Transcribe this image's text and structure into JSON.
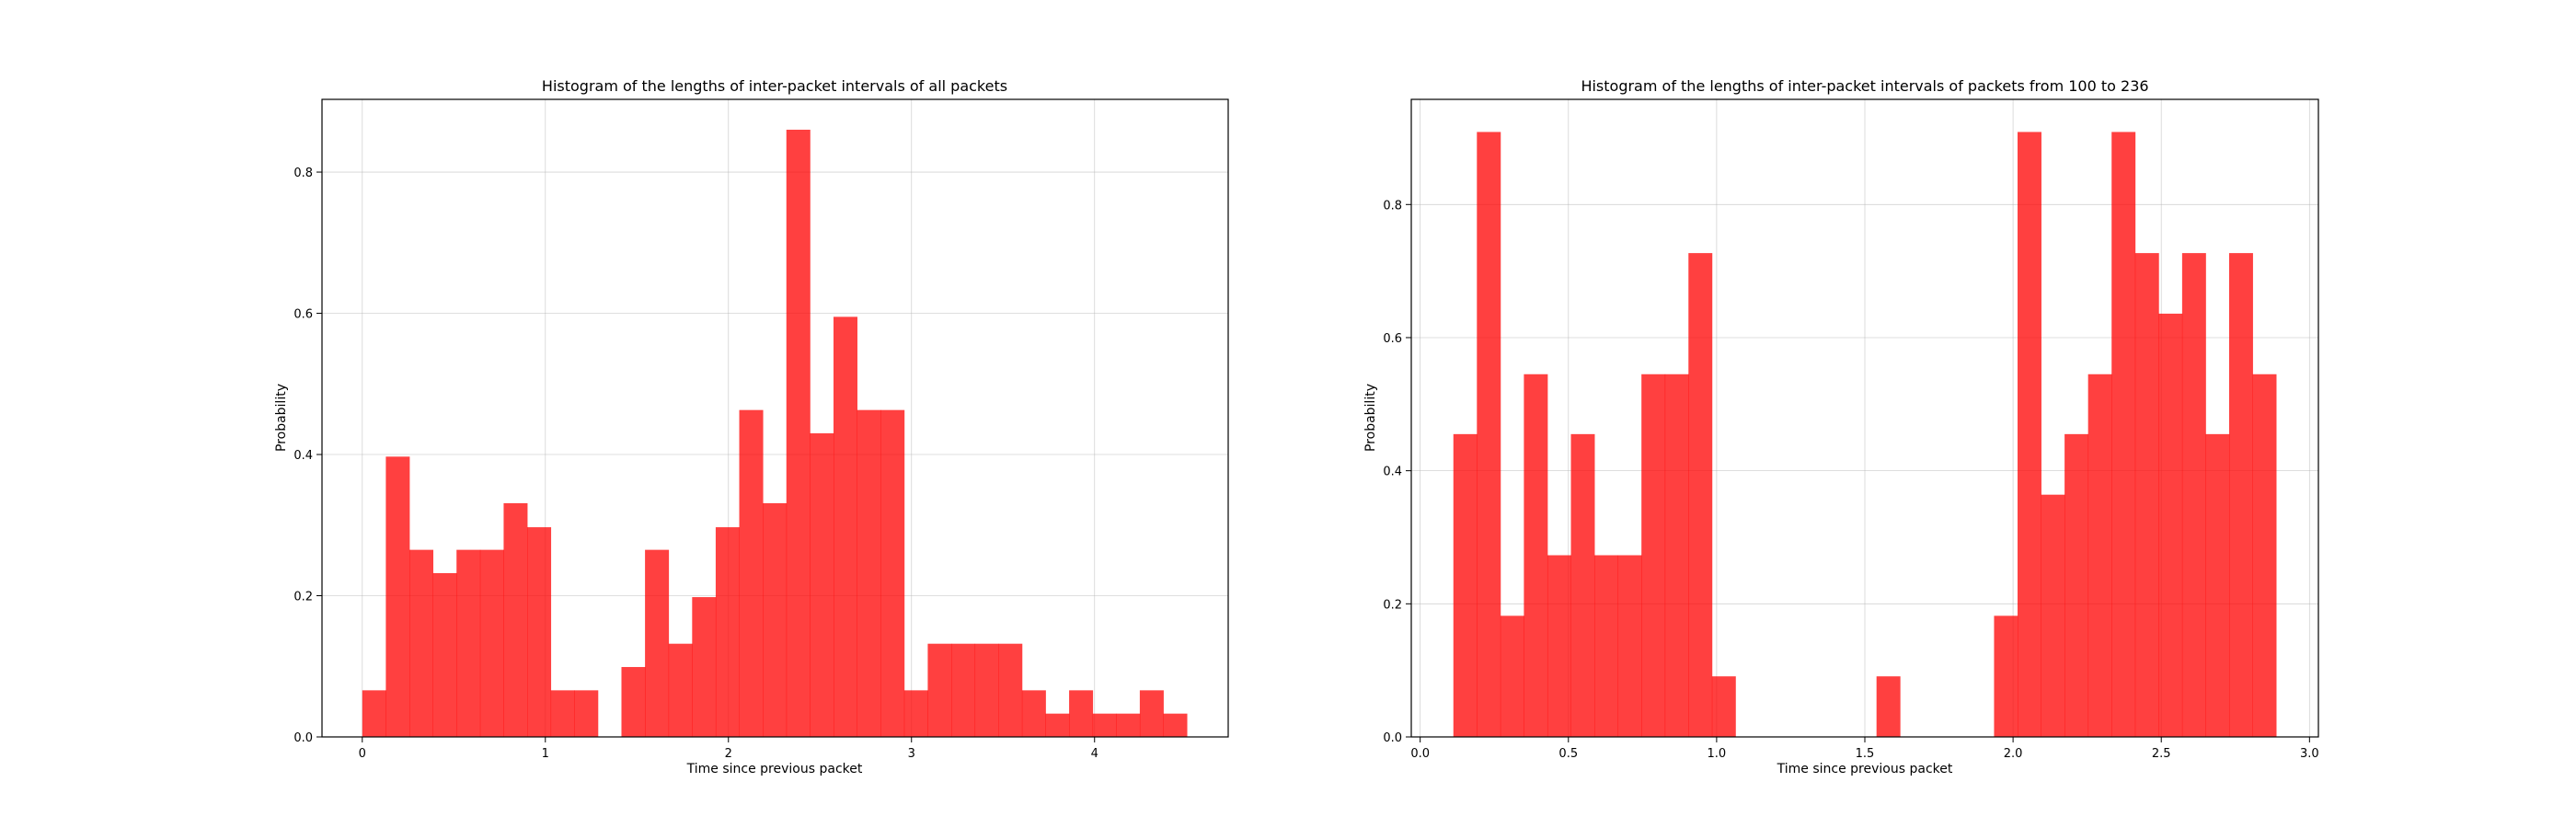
{
  "chart_data": [
    {
      "type": "bar",
      "title": "Histogram of the lengths of inter-packet intervals of all packets",
      "xlabel": "Time since previous packet",
      "ylabel": "Probability",
      "xlim": [
        -0.22,
        4.73
      ],
      "ylim": [
        0,
        0.903
      ],
      "xticks": [
        0,
        1,
        2,
        3,
        4
      ],
      "xtick_labels": [
        "0",
        "1",
        "2",
        "3",
        "4"
      ],
      "yticks": [
        0.0,
        0.2,
        0.4,
        0.6,
        0.8
      ],
      "ytick_labels": [
        "0.0",
        "0.2",
        "0.4",
        "0.6",
        "0.8"
      ],
      "grid": true,
      "color": "#ff0000",
      "bin_start": 0,
      "bin_width": 0.1287,
      "values": [
        0.066,
        0.397,
        0.265,
        0.232,
        0.265,
        0.265,
        0.331,
        0.297,
        0.066,
        0.066,
        0,
        0.099,
        0.265,
        0.132,
        0.198,
        0.297,
        0.463,
        0.331,
        0.86,
        0.43,
        0.595,
        0.463,
        0.463,
        0.066,
        0.132,
        0.132,
        0.132,
        0.132,
        0.066,
        0.033,
        0.066,
        0.033,
        0.033,
        0.066,
        0.033
      ]
    },
    {
      "type": "bar",
      "title": "Histogram of the lengths of inter-packet intervals of packets from 100 to 236",
      "xlabel": "Time since previous packet",
      "ylabel": "Probability",
      "xlim": [
        -0.03,
        3.03
      ],
      "ylim": [
        0,
        0.958
      ],
      "xticks": [
        0.0,
        0.5,
        1.0,
        1.5,
        2.0,
        2.5,
        3.0
      ],
      "xtick_labels": [
        "0.0",
        "0.5",
        "1.0",
        "1.5",
        "2.0",
        "2.5",
        "3.0"
      ],
      "yticks": [
        0.0,
        0.2,
        0.4,
        0.6,
        0.8
      ],
      "ytick_labels": [
        "0.0",
        "0.2",
        "0.4",
        "0.6",
        "0.8"
      ],
      "grid": true,
      "color": "#ff0000",
      "bin_start": 0.112,
      "bin_width": 0.0793,
      "values": [
        0.455,
        0.909,
        0.182,
        0.545,
        0.273,
        0.455,
        0.273,
        0.273,
        0.545,
        0.545,
        0.727,
        0.091,
        0,
        0,
        0,
        0,
        0,
        0,
        0.091,
        0,
        0,
        0,
        0,
        0.182,
        0.909,
        0.364,
        0.455,
        0.545,
        0.909,
        0.727,
        0.636,
        0.727,
        0.455,
        0.727,
        0.545
      ]
    }
  ]
}
